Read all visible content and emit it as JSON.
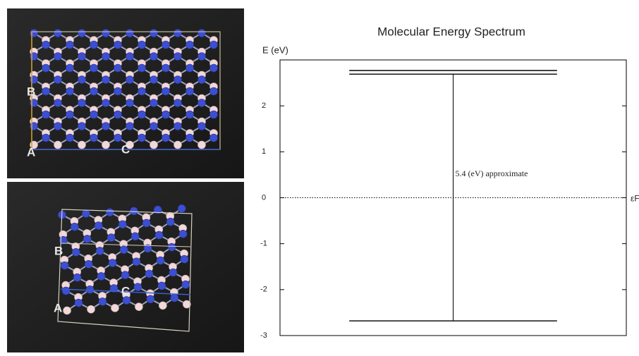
{
  "panels": [
    {
      "labels": [
        "A",
        "B",
        "C"
      ]
    },
    {
      "labels": [
        "A",
        "B",
        "C"
      ]
    }
  ],
  "chart_data": {
    "type": "levels",
    "title": "Molecular Energy Spectrum",
    "y_label": "E (eV)",
    "levels": [
      2.77,
      2.69,
      -2.68
    ],
    "color": "#000000",
    "annotation": "5.4 (eV) approximate",
    "fermi_level": 0,
    "fermi_label": "εF",
    "ylim": [
      -3,
      3
    ],
    "yticks": [
      -3,
      -2,
      -1,
      0,
      1,
      2
    ]
  }
}
